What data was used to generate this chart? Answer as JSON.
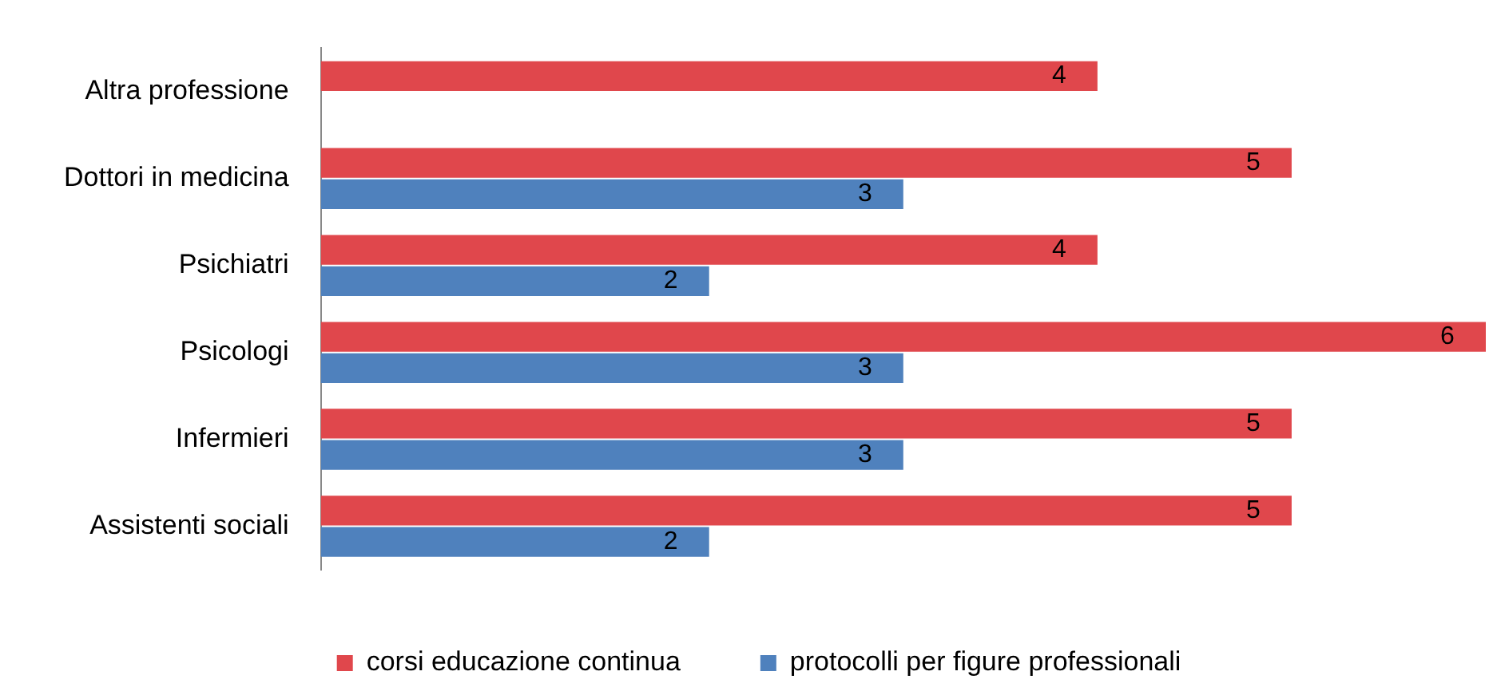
{
  "chart_data": {
    "type": "bar",
    "orientation": "horizontal",
    "categories": [
      "Altra professione",
      "Dottori in medicina",
      "Psichiatri",
      "Psicologi",
      "Infermieri",
      "Assistenti sociali"
    ],
    "series": [
      {
        "name": "corsi educazione continua",
        "color": "#e0474c",
        "values": [
          4,
          5,
          4,
          6,
          5,
          5
        ]
      },
      {
        "name": "protocolli per figure professionali",
        "color": "#4f81bd",
        "values": [
          null,
          3,
          2,
          3,
          3,
          2
        ]
      }
    ],
    "xlim": [
      0,
      6
    ],
    "data_labels": true,
    "legend": "bottom",
    "tick_labels": "y",
    "grid": false
  }
}
